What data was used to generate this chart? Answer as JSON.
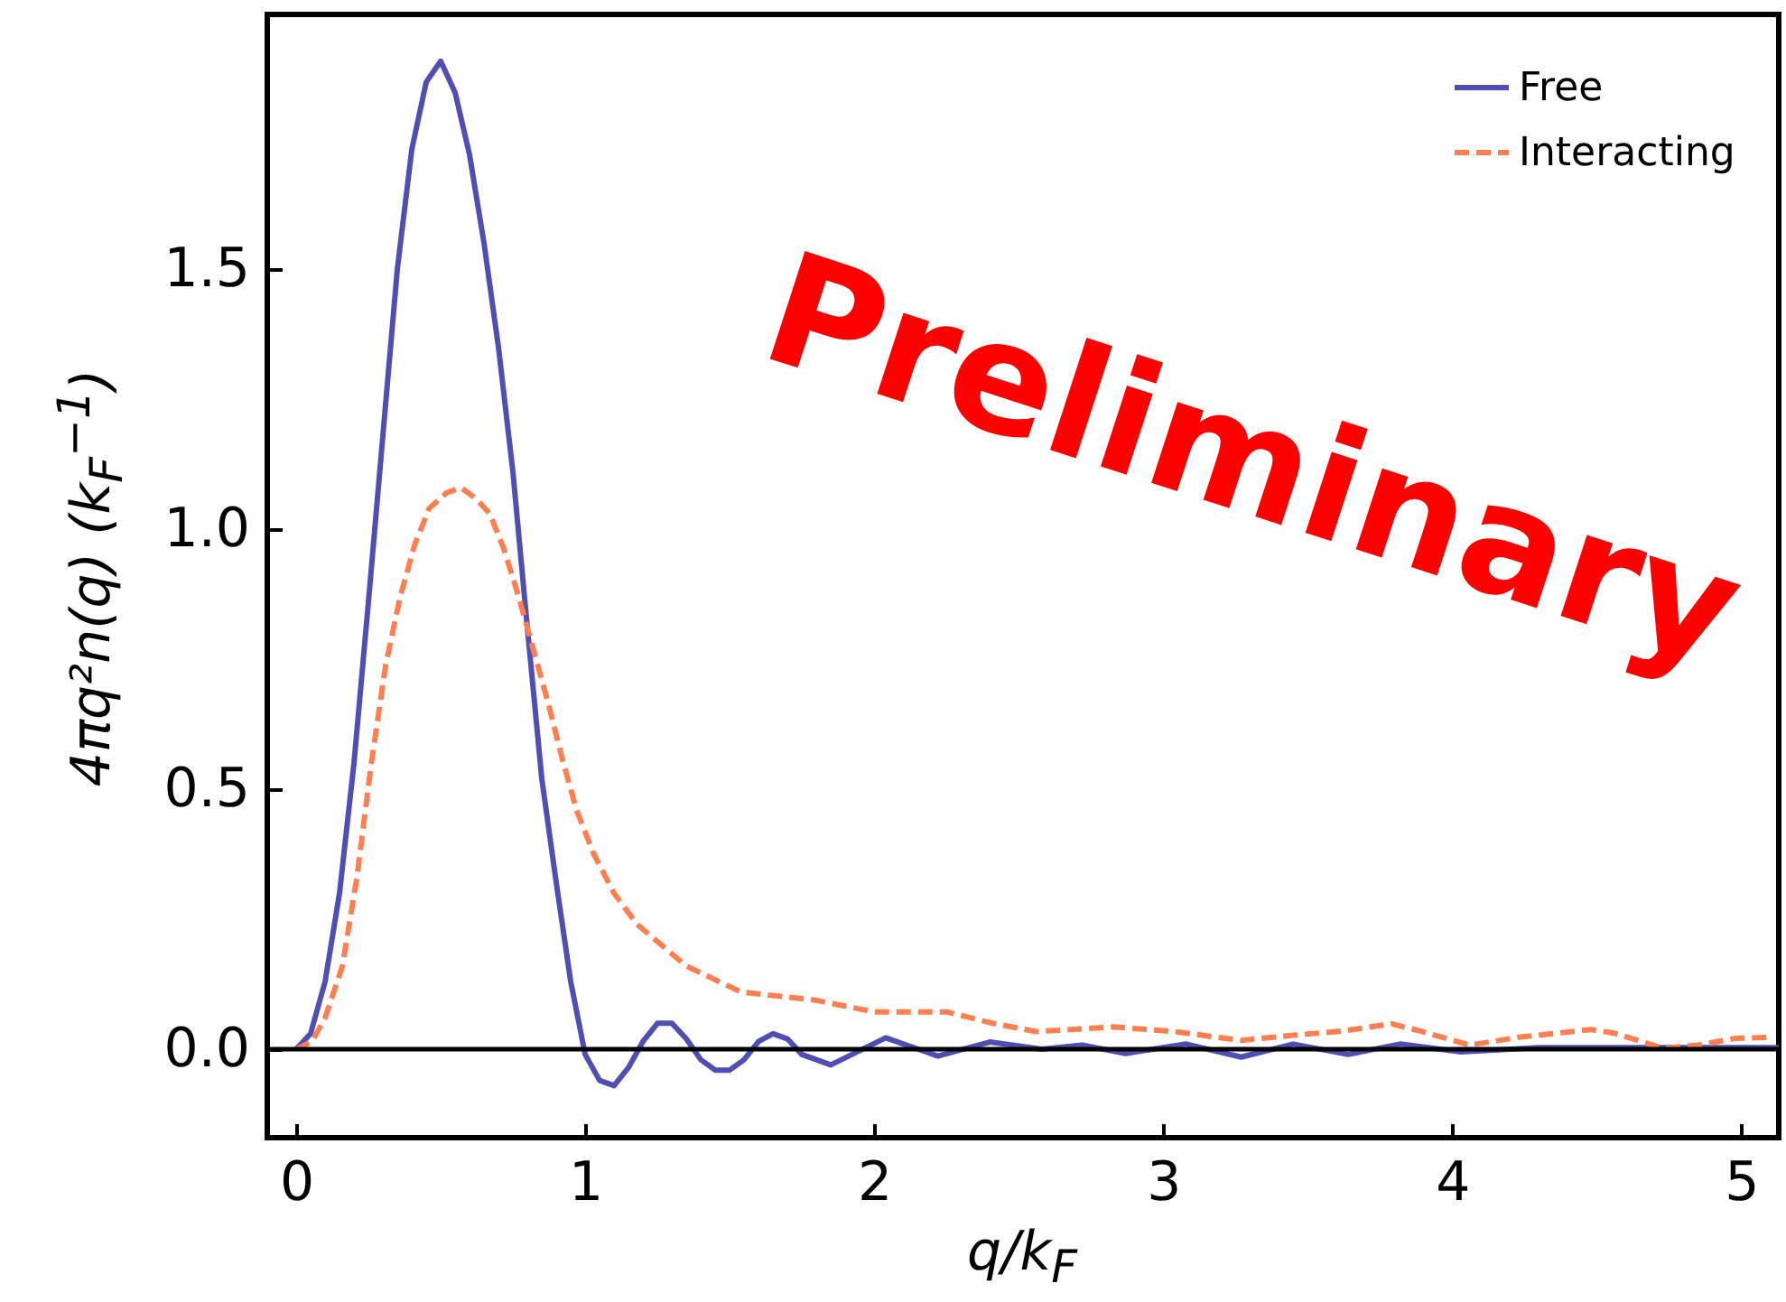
{
  "chart_data": {
    "type": "line",
    "xlabel": "q/k$_{F}$",
    "ylabel": "4πq²n(q) (k$_{F}$$^{−1}$)",
    "annotations": [
      "Preliminary"
    ],
    "xlim": [
      -0.1,
      5.13
    ],
    "ylim": [
      -0.17,
      1.99
    ],
    "xticks": [
      0,
      1,
      2,
      3,
      4,
      5
    ],
    "yticks": [
      {
        "value": 0,
        "label": "0.0"
      },
      {
        "value": 0.5,
        "label": "0.5"
      },
      {
        "value": 1,
        "label": "1.0"
      },
      {
        "value": 1.5,
        "label": "1.5"
      }
    ],
    "grid": false,
    "legend": "top right",
    "marker": "none",
    "ref_lines": [
      {
        "axis": "y",
        "value": 0,
        "color": "#000000"
      }
    ],
    "series": [
      {
        "name": "Free",
        "color": "#4f4fb3",
        "line_style": "solid",
        "x": [
          0,
          0.05,
          0.1,
          0.15,
          0.2,
          0.25,
          0.3,
          0.35,
          0.4,
          0.45,
          0.5,
          0.55,
          0.6,
          0.65,
          0.7,
          0.75,
          0.8,
          0.85,
          0.9,
          0.95,
          1.0,
          1.05,
          1.1,
          1.15,
          1.2,
          1.25,
          1.3,
          1.35,
          1.4,
          1.45,
          1.5,
          1.55,
          1.6,
          1.65,
          1.7,
          1.75,
          1.85,
          2.04,
          2.22,
          2.4,
          2.58,
          2.72,
          2.87,
          3.08,
          3.27,
          3.45,
          3.64,
          3.82,
          4.03,
          4.3,
          4.6,
          4.9,
          5.13
        ],
        "values": [
          0,
          0.03,
          0.13,
          0.3,
          0.55,
          0.86,
          1.18,
          1.5,
          1.73,
          1.86,
          1.9,
          1.84,
          1.72,
          1.55,
          1.35,
          1.11,
          0.81,
          0.52,
          0.32,
          0.13,
          -0.01,
          -0.06,
          -0.07,
          -0.035,
          0.015,
          0.05,
          0.05,
          0.02,
          -0.02,
          -0.04,
          -0.04,
          -0.02,
          0.015,
          0.03,
          0.02,
          -0.01,
          -0.03,
          0.022,
          -0.013,
          0.014,
          0,
          0.008,
          -0.008,
          0.01,
          -0.015,
          0.01,
          -0.01,
          0.01,
          -0.005,
          0.003,
          0.003,
          0.003,
          0.003
        ]
      },
      {
        "name": "Interacting",
        "color": "#ff7f50",
        "line_style": "dashed",
        "x": [
          0,
          0.055,
          0.1,
          0.16,
          0.21,
          0.26,
          0.31,
          0.36,
          0.41,
          0.46,
          0.52,
          0.57,
          0.62,
          0.67,
          0.72,
          0.77,
          0.82,
          0.87,
          0.92,
          0.97,
          1.03,
          1.1,
          1.18,
          1.35,
          1.54,
          1.79,
          2.0,
          2.25,
          2.41,
          2.56,
          2.83,
          3.04,
          3.27,
          3.45,
          3.62,
          3.79,
          3.89,
          4.06,
          4.23,
          4.48,
          4.56,
          4.73,
          4.85,
          4.98,
          5.1
        ],
        "values": [
          0,
          0.015,
          0.06,
          0.16,
          0.33,
          0.55,
          0.74,
          0.87,
          0.97,
          1.04,
          1.07,
          1.08,
          1.06,
          1.03,
          0.96,
          0.87,
          0.77,
          0.67,
          0.56,
          0.46,
          0.375,
          0.3,
          0.24,
          0.16,
          0.11,
          0.095,
          0.072,
          0.072,
          0.05,
          0.034,
          0.043,
          0.034,
          0.017,
          0.027,
          0.035,
          0.049,
          0.035,
          0.008,
          0.023,
          0.038,
          0.031,
          0.002,
          0.008,
          0.021,
          0.023
        ]
      }
    ]
  }
}
